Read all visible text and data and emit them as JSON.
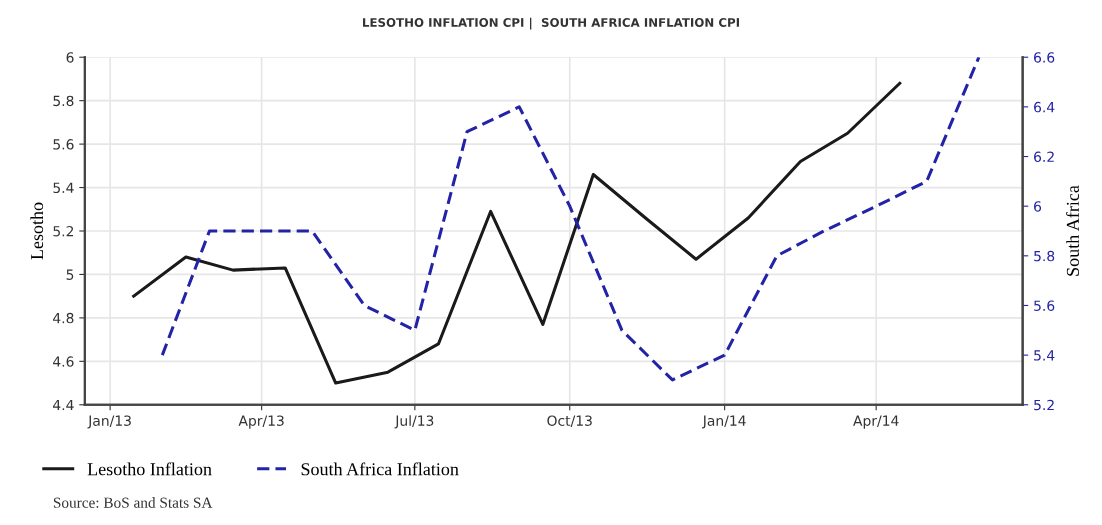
{
  "chart_data": {
    "type": "line",
    "title": "LESOTHO INFLATION CPI |  SOUTH AFRICA INFLATION CPI",
    "ylabel": "Lesotho",
    "y2label": "South Africa",
    "xlim": [
      "2012-12-17",
      "2014-06-27"
    ],
    "xticks": [
      {
        "value": "2013-01-01",
        "label": "Jan/13"
      },
      {
        "value": "2013-04-01",
        "label": "Apr/13"
      },
      {
        "value": "2013-07-01",
        "label": "Jul/13"
      },
      {
        "value": "2013-10-01",
        "label": "Oct/13"
      },
      {
        "value": "2014-01-01",
        "label": "Jan/14"
      },
      {
        "value": "2014-04-01",
        "label": "Apr/14"
      }
    ],
    "ylim": [
      4.4,
      6
    ],
    "yticks": [
      4.4,
      4.6,
      4.8,
      5,
      5.2,
      5.4,
      5.6,
      5.8,
      6
    ],
    "y2lim": [
      5.2,
      6.6
    ],
    "y2ticks": [
      5.2,
      5.4,
      5.6,
      5.8,
      6,
      6.2,
      6.4,
      6.6
    ],
    "grid": true,
    "legend": "bottom left",
    "series": [
      {
        "name": "Lesotho Inflation",
        "color": "#1a1a1a",
        "line_style": "solid",
        "x": [
          "2013-01-15",
          "2013-02-15",
          "2013-03-15",
          "2013-04-15",
          "2013-05-15",
          "2013-06-15",
          "2013-07-15",
          "2013-08-15",
          "2013-09-15",
          "2013-10-15",
          "2013-11-15",
          "2013-12-15",
          "2014-01-15",
          "2014-02-15",
          "2014-03-15",
          "2014-04-15"
        ],
        "values": [
          4.9,
          5.08,
          5.02,
          5.03,
          4.5,
          4.55,
          4.68,
          5.29,
          4.77,
          5.46,
          5.26,
          5.07,
          5.26,
          5.52,
          5.65,
          5.88
        ]
      },
      {
        "name": "South Africa Inflation",
        "color": "#2323a8",
        "line_style": "dashed",
        "axis": "y2",
        "x": [
          "2013-02-01",
          "2013-03-01",
          "2013-04-01",
          "2013-05-01",
          "2013-06-01",
          "2013-07-01",
          "2013-08-01",
          "2013-09-01",
          "2013-10-01",
          "2013-11-01",
          "2013-12-01",
          "2014-01-01",
          "2014-02-01",
          "2014-03-01",
          "2014-04-01",
          "2014-05-01",
          "2014-06-01"
        ],
        "values": [
          5.4,
          5.9,
          5.9,
          5.9,
          5.6,
          5.5,
          6.3,
          6.4,
          6.0,
          5.5,
          5.3,
          5.4,
          5.8,
          5.9,
          6.0,
          6.1,
          6.6
        ]
      }
    ],
    "annotations": [
      "Source: BoS and Stats SA"
    ]
  }
}
